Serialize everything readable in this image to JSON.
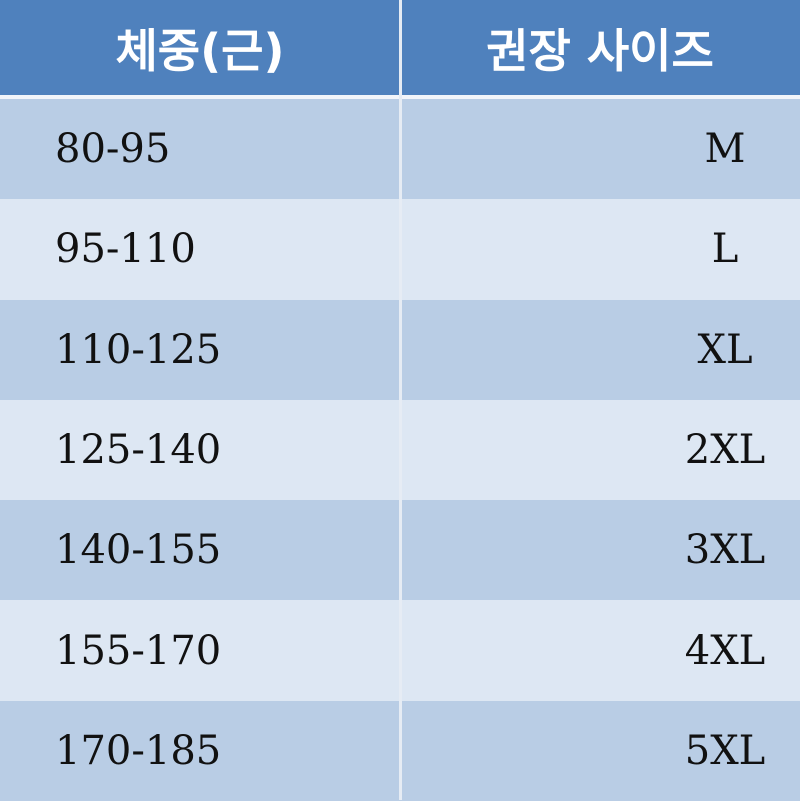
{
  "header": {
    "weight_label": "체중(근)",
    "size_label": "권장 사이즈"
  },
  "rows": [
    {
      "weight": "80-95",
      "size": "M"
    },
    {
      "weight": "95-110",
      "size": "L"
    },
    {
      "weight": "110-125",
      "size": "XL"
    },
    {
      "weight": "125-140",
      "size": "2XL"
    },
    {
      "weight": "140-155",
      "size": "3XL"
    },
    {
      "weight": "155-170",
      "size": "4XL"
    },
    {
      "weight": "170-185",
      "size": "5XL"
    }
  ],
  "colors": {
    "header": "#4f81bd",
    "row_dark": "#b9cde5",
    "row_light": "#dde7f3"
  }
}
